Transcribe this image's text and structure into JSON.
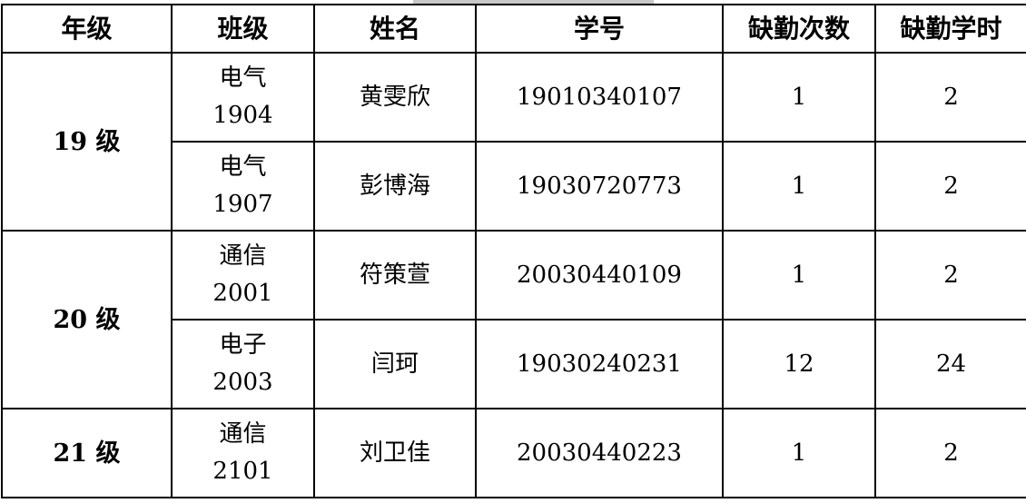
{
  "table": {
    "headers": [
      "年级",
      "班级",
      "姓名",
      "学号",
      "缺勤次数",
      "缺勤学时"
    ],
    "groups": [
      {
        "grade": "19 级",
        "rows": [
          {
            "class_name": "电气",
            "class_no": "1904",
            "name": "黄雯欣",
            "id": "19010340107",
            "absences": "1",
            "hours": "2"
          },
          {
            "class_name": "电气",
            "class_no": "1907",
            "name": "彭博海",
            "id": "19030720773",
            "absences": "1",
            "hours": "2"
          }
        ]
      },
      {
        "grade": "20 级",
        "rows": [
          {
            "class_name": "通信",
            "class_no": "2001",
            "name": "符策萱",
            "id": "20030440109",
            "absences": "1",
            "hours": "2"
          },
          {
            "class_name": "电子",
            "class_no": "2003",
            "name": "闫珂",
            "id": "19030240231",
            "absences": "12",
            "hours": "24"
          }
        ]
      },
      {
        "grade": "21 级",
        "rows": [
          {
            "class_name": "通信",
            "class_no": "2101",
            "name": "刘卫佳",
            "id": "20030440223",
            "absences": "1",
            "hours": "2"
          }
        ]
      }
    ]
  }
}
